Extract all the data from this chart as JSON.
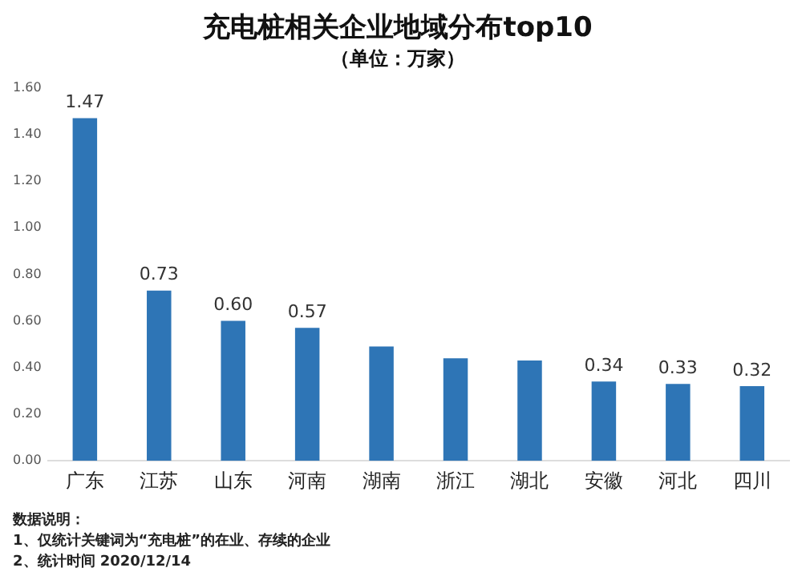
{
  "chart_data": {
    "type": "bar",
    "title": "充电桩相关企业地域分布top10",
    "subtitle": "（单位：万家）",
    "categories": [
      "广东",
      "江苏",
      "山东",
      "河南",
      "湖南",
      "浙江",
      "湖北",
      "安徽",
      "河北",
      "四川"
    ],
    "values": [
      1.47,
      0.73,
      0.6,
      0.57,
      0.49,
      0.44,
      0.43,
      0.34,
      0.33,
      0.32
    ],
    "value_labels": [
      "1.47",
      "0.73",
      "0.60",
      "0.57",
      null,
      null,
      null,
      "0.34",
      "0.33",
      "0.32"
    ],
    "color": "#2e75b6",
    "ylim": [
      0,
      1.6
    ],
    "yticks": [
      {
        "value": 0,
        "label": "0.00"
      },
      {
        "value": 0.2,
        "label": "0.20"
      },
      {
        "value": 0.4,
        "label": "0.40"
      },
      {
        "value": 0.6,
        "label": "0.60"
      },
      {
        "value": 0.8,
        "label": "0.80"
      },
      {
        "value": 1,
        "label": "1.00"
      },
      {
        "value": 1.2,
        "label": "1.20"
      },
      {
        "value": 1.4,
        "label": "1.40"
      },
      {
        "value": 1.6,
        "label": "1.60"
      }
    ],
    "grid": false,
    "legend": false,
    "annotations": [
      "数据说明：",
      "1、仅统计关键词为“充电桩”的在业、存续的企业",
      "2、统计时间 2020/12/14"
    ]
  }
}
